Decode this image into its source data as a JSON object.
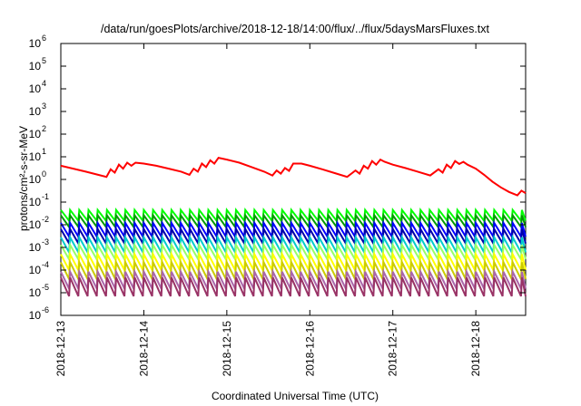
{
  "chart_data": {
    "type": "line",
    "title": "/data/run/goesPlots/archive/2018-12-18/14:00/flux/../flux/5daysMarsFluxes.txt",
    "xlabel": "Coordinated Universal Time (UTC)",
    "ylabel": "protons/cm²-s-sr-MeV",
    "yscale": "log",
    "xlim": [
      0,
      5.6
    ],
    "ylim": [
      1e-06,
      1000000.0
    ],
    "x_ticks": [
      {
        "x": 0,
        "label": "2018-12-13"
      },
      {
        "x": 1,
        "label": "2018-12-14"
      },
      {
        "x": 2,
        "label": "2018-12-15"
      },
      {
        "x": 3,
        "label": "2018-12-16"
      },
      {
        "x": 4,
        "label": "2018-12-17"
      },
      {
        "x": 5,
        "label": "2018-12-18"
      }
    ],
    "y_ticks": [
      {
        "exp": -6,
        "label": "10^-6"
      },
      {
        "exp": -5,
        "label": "10^-5"
      },
      {
        "exp": -4,
        "label": "10^-4"
      },
      {
        "exp": -3,
        "label": "10^-3"
      },
      {
        "exp": -2,
        "label": "10^-2"
      },
      {
        "exp": -1,
        "label": "10^-1"
      },
      {
        "exp": 0,
        "label": "10^0"
      },
      {
        "exp": 1,
        "label": "10^1"
      },
      {
        "exp": 2,
        "label": "10^2"
      },
      {
        "exp": 3,
        "label": "10^3"
      },
      {
        "exp": 4,
        "label": "10^4"
      },
      {
        "exp": 5,
        "label": "10^5"
      },
      {
        "exp": 6,
        "label": "10^6"
      }
    ],
    "series": [
      {
        "color": "#ff0000",
        "x": [
          0,
          0.15,
          0.3,
          0.45,
          0.55,
          0.6,
          0.65,
          0.7,
          0.75,
          0.8,
          0.85,
          0.9,
          1.0,
          1.15,
          1.3,
          1.45,
          1.55,
          1.6,
          1.65,
          1.7,
          1.75,
          1.8,
          1.85,
          1.9,
          2.0,
          2.15,
          2.3,
          2.45,
          2.55,
          2.6,
          2.65,
          2.7,
          2.75,
          2.8,
          2.9,
          3.0,
          3.15,
          3.3,
          3.45,
          3.55,
          3.6,
          3.65,
          3.7,
          3.75,
          3.8,
          3.85,
          3.9,
          4.0,
          4.15,
          4.3,
          4.45,
          4.55,
          4.6,
          4.65,
          4.7,
          4.75,
          4.8,
          4.85,
          4.9,
          5.0,
          5.1,
          5.2,
          5.3,
          5.4,
          5.5,
          5.55,
          5.6
        ],
        "y": [
          4.0,
          3.0,
          2.2,
          1.6,
          1.3,
          2.8,
          2.0,
          4.5,
          3.0,
          5.5,
          4.0,
          5.5,
          5.0,
          4.0,
          3.0,
          2.2,
          1.6,
          3.0,
          2.2,
          5.0,
          3.5,
          7.0,
          5.0,
          9.0,
          7.5,
          5.5,
          3.5,
          2.2,
          1.5,
          2.5,
          1.8,
          3.2,
          2.4,
          5.0,
          5.0,
          4.0,
          2.8,
          1.9,
          1.3,
          2.5,
          1.8,
          4.0,
          3.0,
          6.5,
          4.5,
          7.5,
          6.0,
          4.5,
          3.2,
          2.2,
          1.5,
          2.8,
          2.0,
          4.5,
          3.2,
          6.5,
          4.8,
          6.0,
          4.5,
          3.0,
          1.6,
          0.8,
          0.45,
          0.28,
          0.2,
          0.32,
          0.25
        ]
      },
      {
        "color": "#00ff00",
        "baseline": 0.015,
        "amplitude": 0.03
      },
      {
        "color": "#009900",
        "baseline": 0.008,
        "amplitude": 0.018
      },
      {
        "color": "#0000ff",
        "baseline": 0.003,
        "amplitude": 0.009
      },
      {
        "color": "#0000aa",
        "baseline": 0.0015,
        "amplitude": 0.005
      },
      {
        "color": "#00cccc",
        "baseline": 0.0006,
        "amplitude": 0.0022
      },
      {
        "color": "#99ff66",
        "baseline": 0.0003,
        "amplitude": 0.001
      },
      {
        "color": "#ffff00",
        "baseline": 0.0001,
        "amplitude": 0.0004
      },
      {
        "color": "#cccc00",
        "baseline": 4e-05,
        "amplitude": 0.00018
      },
      {
        "color": "#aa66aa",
        "baseline": 1.5e-05,
        "amplitude": 7e-05
      },
      {
        "color": "#993366",
        "baseline": 7e-06,
        "amplitude": 4e-05
      }
    ],
    "sawtooth": {
      "period": 0.1111,
      "x_start": 0,
      "x_end": 5.6
    },
    "grid": false,
    "legend": "none"
  }
}
